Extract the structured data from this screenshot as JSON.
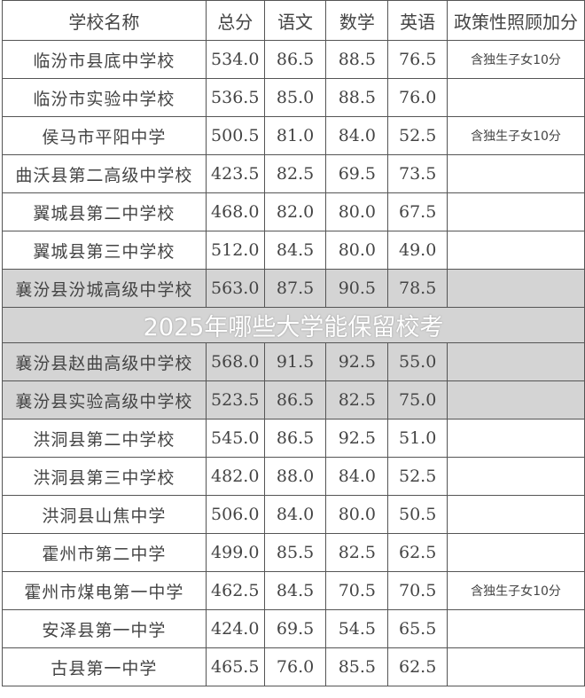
{
  "headers": [
    "学校名称",
    "总分",
    "语文",
    "数学",
    "英语",
    "政策性照顾加分"
  ],
  "rows": [
    [
      "临汾市县底中学校",
      "534.0",
      "86.5",
      "88.5",
      "76.5",
      "含独生子女10分"
    ],
    [
      "临汾市实验中学校",
      "536.5",
      "85.0",
      "88.5",
      "76.0",
      ""
    ],
    [
      "侯马市平阳中学",
      "500.5",
      "81.0",
      "84.0",
      "52.5",
      "含独生子女10分"
    ],
    [
      "曲沃县第二高级中学校",
      "423.5",
      "82.5",
      "69.5",
      "73.5",
      ""
    ],
    [
      "翼城县第二中学校",
      "468.0",
      "82.0",
      "80.0",
      "67.5",
      ""
    ],
    [
      "翼城县第三中学校",
      "512.0",
      "84.5",
      "80.0",
      "49.0",
      ""
    ],
    [
      "襄汾县汾城高级中学校",
      "563.0",
      "87.5",
      "90.5",
      "78.5",
      ""
    ],
    [
      "襄汾县赵曲高级中学校",
      "568.0",
      "91.5",
      "92.5",
      "55.0",
      ""
    ],
    [
      "襄汾县实验高级中学校",
      "523.5",
      "86.5",
      "82.5",
      "75.0",
      ""
    ],
    [
      "洪洞县第二中学校",
      "545.0",
      "86.5",
      "92.5",
      "51.0",
      ""
    ],
    [
      "洪洞县第三中学校",
      "482.0",
      "88.0",
      "84.0",
      "52.5",
      ""
    ],
    [
      "洪洞县山焦中学",
      "506.0",
      "84.0",
      "80.0",
      "50.5",
      ""
    ],
    [
      "霍州市第二中学",
      "499.0",
      "85.5",
      "82.5",
      "62.5",
      ""
    ],
    [
      "霍州市煤电第一中学",
      "462.5",
      "84.5",
      "70.5",
      "70.5",
      "含独生子女10分"
    ],
    [
      "安泽县第一中学",
      "424.0",
      "69.5",
      "54.5",
      "65.5",
      ""
    ],
    [
      "古县第一中学",
      "465.5",
      "76.0",
      "85.5",
      "62.5",
      ""
    ]
  ],
  "watermark": "2025年哪些大学能保留校考"
}
